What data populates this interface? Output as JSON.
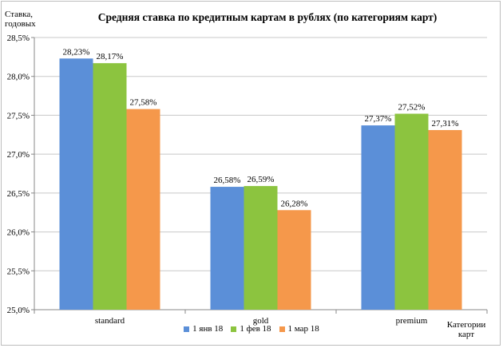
{
  "chart_data": {
    "type": "bar",
    "title": "Средняя ставка по кредитным картам в рублях (по категориям карт)",
    "ylabel": "Ставка, годовых",
    "xlabel": "Категории карт",
    "categories": [
      "standard",
      "gold",
      "premium"
    ],
    "series": [
      {
        "name": "1 янв 18",
        "color": "#5b8fd8",
        "values": [
          28.23,
          26.58,
          27.37
        ],
        "labels": [
          "28,23%",
          "26,58%",
          "27,37%"
        ]
      },
      {
        "name": "1 фев 18",
        "color": "#8cc43f",
        "values": [
          28.17,
          26.59,
          27.52
        ],
        "labels": [
          "28,17%",
          "26,59%",
          "27,52%"
        ]
      },
      {
        "name": "1 мар 18",
        "color": "#f5984b",
        "values": [
          27.58,
          26.28,
          27.31
        ],
        "labels": [
          "27,58%",
          "26,28%",
          "27,31%"
        ]
      }
    ],
    "ylim": [
      25.0,
      28.5
    ],
    "yticks": [
      25.0,
      25.5,
      26.0,
      26.5,
      27.0,
      27.5,
      28.0,
      28.5
    ],
    "ytick_labels": [
      "25,0%",
      "25,5%",
      "26,0%",
      "26,5%",
      "27,0%",
      "27,5%",
      "28,0%",
      "28,5%"
    ],
    "grid": true,
    "legend_position": "bottom"
  }
}
